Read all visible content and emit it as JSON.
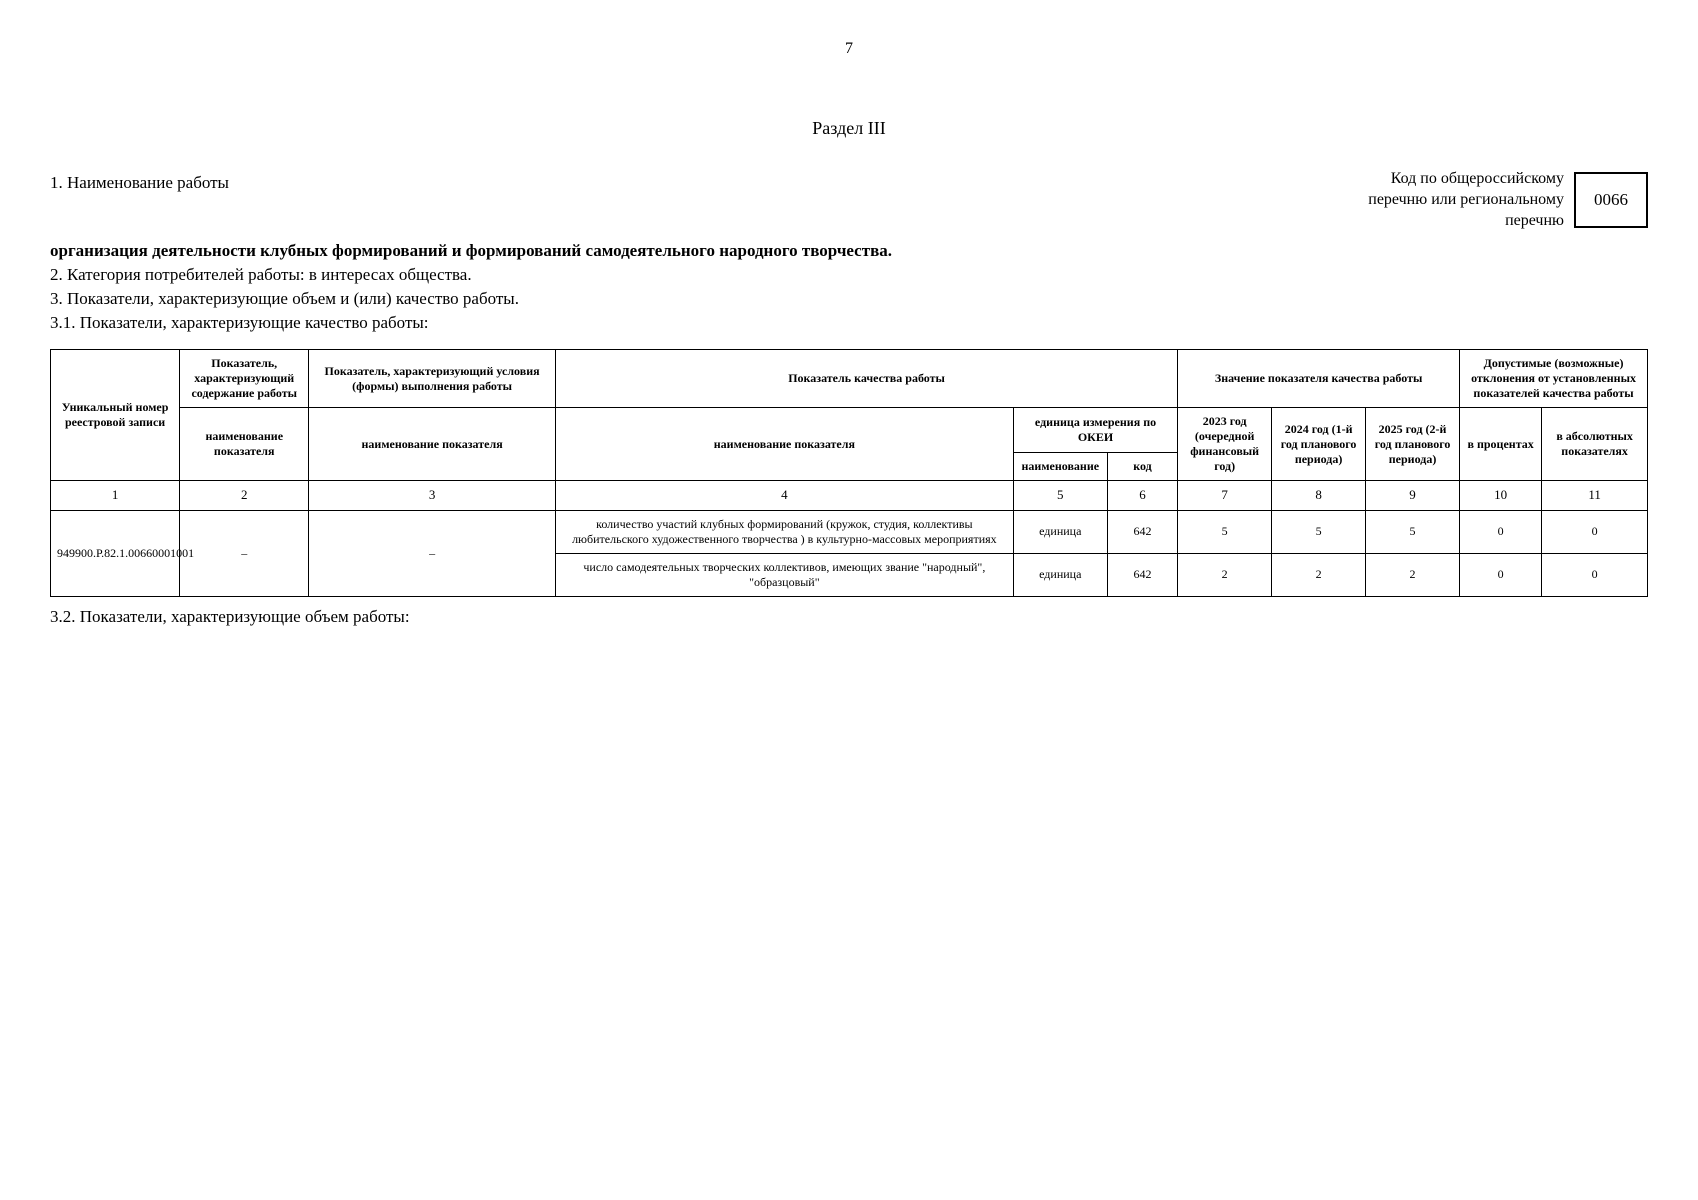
{
  "pageNumber": "7",
  "sectionTitle": "Раздел III",
  "line1": "1. Наименование работы",
  "boldLine": "организация деятельности клубных формирований и формирований самодеятельного народного творчества.",
  "line2": "2. Категория потребителей работы: в интересах общества.",
  "line3": "3. Показатели, характеризующие объем и (или) качество работы.",
  "line31": "3.1. Показатели, характеризующие качество работы:",
  "codeLabel1": "Код по общероссийскому",
  "codeLabel2": "перечню или региональному",
  "codeLabel3": "перечню",
  "codeValue": "0066",
  "th": {
    "uniq": "Уникальный номер реестровой записи",
    "charContent": "Показатель, характеризующий содержание работы",
    "charCond": "Показатель, характеризующий условия (формы) выполнения работы",
    "qualInd": "Показатель качества работы",
    "qualVal": "Значение показателя качества работы",
    "devHead": "Допустимые (возможные) отклонения от установленных показателей качества работы",
    "nameInd1": "наименование показателя",
    "nameInd2": "наименование показателя",
    "nameInd3": "наименование показателя",
    "unitOkei": "единица измерения по ОКЕИ",
    "unitName": "наименование",
    "unitCode": "код",
    "y2023": "2023 год (очередной финансовый год)",
    "y2024": "2024 год (1-й год планового периода)",
    "y2025": "2025 год (2-й год планового периода)",
    "inPercent": "в процентах",
    "inAbs": "в абсолютных показателях"
  },
  "nums": [
    "1",
    "2",
    "3",
    "4",
    "5",
    "6",
    "7",
    "8",
    "9",
    "10",
    "11"
  ],
  "row1": {
    "uniq": "949900.Р.82.1.00660001001",
    "c2": "–",
    "c3": "–",
    "ind": "количество участий клубных формирований (кружок, студия, коллективы любительского художественного творчества ) в культурно-массовых мероприятиях",
    "unit": "единица",
    "code": "642",
    "v7": "5",
    "v8": "5",
    "v9": "5",
    "v10": "0",
    "v11": "0"
  },
  "row2": {
    "ind": "число самодеятельных творческих коллективов, имеющих звание \"народный\", \"образцовый\"",
    "unit": "единица",
    "code": "642",
    "v7": "2",
    "v8": "2",
    "v9": "2",
    "v10": "0",
    "v11": "0"
  },
  "line32": "3.2. Показатели, характеризующие объем работы:"
}
